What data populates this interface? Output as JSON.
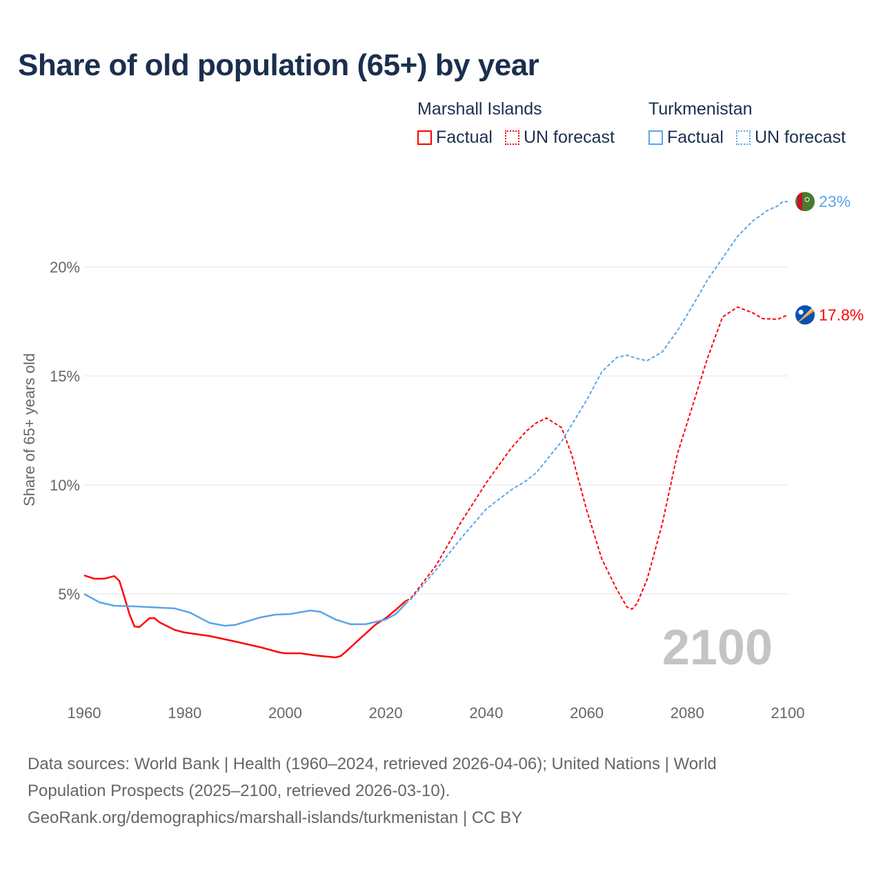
{
  "chart_data": {
    "type": "line",
    "title": "Share of old population (65+) by year",
    "ylabel": "Share of 65+ years old",
    "xlabel": "",
    "xlim": [
      1960,
      2100
    ],
    "ylim": [
      0,
      23.5
    ],
    "x_ticks": [
      "1960",
      "1980",
      "2000",
      "2020",
      "2040",
      "2060",
      "2080",
      "2100"
    ],
    "x_tick_values": [
      1960,
      1980,
      2000,
      2020,
      2040,
      2060,
      2080,
      2100
    ],
    "y_ticks": [
      "5%",
      "10%",
      "15%",
      "20%"
    ],
    "y_tick_values": [
      5,
      10,
      15,
      20
    ],
    "grid": true,
    "year_watermark": "2100",
    "legend": {
      "placement": "top-right",
      "groups": [
        {
          "name": "Marshall Islands",
          "color": "#ff0000",
          "items": [
            "Factual",
            "UN forecast"
          ]
        },
        {
          "name": "Turkmenistan",
          "color": "#5ba4ea",
          "items": [
            "Factual",
            "UN forecast"
          ]
        }
      ]
    },
    "series": [
      {
        "name": "Marshall Islands",
        "color": "#ff0000",
        "end_label": "17.8%",
        "flag": "marshall-islands",
        "factual": [
          [
            1960,
            5.85
          ],
          [
            1962,
            5.7
          ],
          [
            1964,
            5.7
          ],
          [
            1966,
            5.82
          ],
          [
            1967,
            5.6
          ],
          [
            1968,
            4.87
          ],
          [
            1969,
            4.08
          ],
          [
            1970,
            3.51
          ],
          [
            1971,
            3.48
          ],
          [
            1973,
            3.89
          ],
          [
            1974,
            3.89
          ],
          [
            1975,
            3.7
          ],
          [
            1978,
            3.35
          ],
          [
            1980,
            3.23
          ],
          [
            1985,
            3.07
          ],
          [
            1990,
            2.82
          ],
          [
            1995,
            2.56
          ],
          [
            1999,
            2.31
          ],
          [
            2000,
            2.28
          ],
          [
            2003,
            2.28
          ],
          [
            2006,
            2.18
          ],
          [
            2010,
            2.09
          ],
          [
            2011,
            2.15
          ],
          [
            2012,
            2.34
          ],
          [
            2015,
            2.97
          ],
          [
            2018,
            3.6
          ],
          [
            2020,
            3.89
          ],
          [
            2022,
            4.27
          ],
          [
            2024,
            4.68
          ]
        ],
        "forecast": [
          [
            2024,
            4.68
          ],
          [
            2025,
            4.8
          ],
          [
            2030,
            6.3
          ],
          [
            2035,
            8.3
          ],
          [
            2040,
            10.1
          ],
          [
            2045,
            11.7
          ],
          [
            2048,
            12.47
          ],
          [
            2050,
            12.85
          ],
          [
            2052,
            13.07
          ],
          [
            2055,
            12.63
          ],
          [
            2057,
            11.4
          ],
          [
            2060,
            8.83
          ],
          [
            2063,
            6.6
          ],
          [
            2066,
            5.2
          ],
          [
            2068,
            4.4
          ],
          [
            2069,
            4.3
          ],
          [
            2070,
            4.56
          ],
          [
            2072,
            5.66
          ],
          [
            2075,
            8.2
          ],
          [
            2078,
            11.4
          ],
          [
            2081,
            13.6
          ],
          [
            2084,
            15.8
          ],
          [
            2087,
            17.7
          ],
          [
            2090,
            18.16
          ],
          [
            2093,
            17.9
          ],
          [
            2095,
            17.63
          ],
          [
            2098,
            17.6
          ],
          [
            2100,
            17.8
          ]
        ]
      },
      {
        "name": "Turkmenistan",
        "color": "#5ba4ea",
        "end_label": "23%",
        "flag": "turkmenistan",
        "factual": [
          [
            1960,
            5.0
          ],
          [
            1963,
            4.62
          ],
          [
            1966,
            4.46
          ],
          [
            1970,
            4.43
          ],
          [
            1975,
            4.37
          ],
          [
            1978,
            4.34
          ],
          [
            1981,
            4.15
          ],
          [
            1985,
            3.67
          ],
          [
            1988,
            3.54
          ],
          [
            1990,
            3.58
          ],
          [
            1995,
            3.92
          ],
          [
            1998,
            4.05
          ],
          [
            2001,
            4.08
          ],
          [
            2005,
            4.24
          ],
          [
            2007,
            4.18
          ],
          [
            2010,
            3.83
          ],
          [
            2013,
            3.61
          ],
          [
            2016,
            3.61
          ],
          [
            2020,
            3.83
          ],
          [
            2022,
            4.08
          ],
          [
            2024,
            4.56
          ]
        ],
        "forecast": [
          [
            2024,
            4.56
          ],
          [
            2025,
            4.75
          ],
          [
            2030,
            6.1
          ],
          [
            2035,
            7.56
          ],
          [
            2040,
            8.9
          ],
          [
            2045,
            9.78
          ],
          [
            2048,
            10.2
          ],
          [
            2050,
            10.57
          ],
          [
            2055,
            12.0
          ],
          [
            2060,
            13.9
          ],
          [
            2063,
            15.2
          ],
          [
            2066,
            15.85
          ],
          [
            2068,
            15.95
          ],
          [
            2070,
            15.8
          ],
          [
            2072,
            15.7
          ],
          [
            2075,
            16.1
          ],
          [
            2078,
            17.06
          ],
          [
            2081,
            18.2
          ],
          [
            2084,
            19.4
          ],
          [
            2087,
            20.4
          ],
          [
            2090,
            21.4
          ],
          [
            2093,
            22.1
          ],
          [
            2096,
            22.6
          ],
          [
            2098,
            22.8
          ],
          [
            2099,
            23.0
          ],
          [
            2100,
            23.0
          ]
        ]
      }
    ]
  },
  "source": {
    "line1": "Data sources: World Bank | Health (1960–2024, retrieved 2026-04-06); United Nations | World",
    "line2": "Population Prospects (2025–2100, retrieved 2026-03-10).",
    "line3": "GeoRank.org/demographics/marshall-islands/turkmenistan | CC BY"
  }
}
